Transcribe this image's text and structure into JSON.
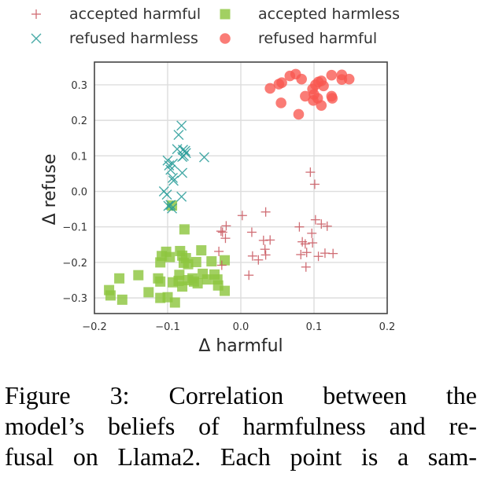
{
  "chart_data": {
    "type": "scatter",
    "title": "",
    "xlabel": "Δ harmful",
    "ylabel": "Δ refuse",
    "xlim": [
      -0.2,
      0.2
    ],
    "ylim": [
      -0.344,
      0.364
    ],
    "xticks": [
      -0.2,
      -0.1,
      0.0,
      0.1,
      0.2
    ],
    "xtick_labels": [
      "−0.2",
      "−0.1",
      "0.0",
      "0.1",
      "0.2"
    ],
    "yticks": [
      -0.3,
      -0.2,
      -0.1,
      0.0,
      0.1,
      0.2,
      0.3
    ],
    "ytick_labels": [
      "−0.3",
      "−0.2",
      "−0.1",
      "0.0",
      "0.1",
      "0.2",
      "0.3"
    ],
    "grid": true,
    "legend_position": "top (above plot, 2 columns)",
    "series": [
      {
        "name": "accepted harmful",
        "marker": "plus",
        "color": "#c8545c",
        "points": [
          [
            0.095,
            0.054
          ],
          [
            0.101,
            0.02
          ],
          [
            0.034,
            -0.058
          ],
          [
            0.002,
            -0.068
          ],
          [
            -0.027,
            -0.112
          ],
          [
            -0.025,
            -0.115
          ],
          [
            -0.02,
            -0.097
          ],
          [
            -0.021,
            -0.132
          ],
          [
            0.015,
            -0.115
          ],
          [
            0.031,
            -0.138
          ],
          [
            0.04,
            -0.137
          ],
          [
            0.033,
            -0.163
          ],
          [
            0.034,
            -0.179
          ],
          [
            0.016,
            -0.182
          ],
          [
            0.024,
            -0.193
          ],
          [
            0.011,
            -0.236
          ],
          [
            -0.03,
            -0.169
          ],
          [
            -0.026,
            -0.208
          ],
          [
            0.08,
            -0.1
          ],
          [
            0.102,
            -0.08
          ],
          [
            0.11,
            -0.092
          ],
          [
            0.118,
            -0.098
          ],
          [
            0.097,
            -0.118
          ],
          [
            0.084,
            -0.142
          ],
          [
            0.088,
            -0.148
          ],
          [
            0.082,
            -0.178
          ],
          [
            0.09,
            -0.172
          ],
          [
            0.106,
            -0.183
          ],
          [
            0.115,
            -0.174
          ],
          [
            0.126,
            -0.175
          ],
          [
            0.089,
            -0.213
          ],
          [
            0.098,
            -0.145
          ]
        ]
      },
      {
        "name": "accepted harmless",
        "marker": "square",
        "color": "#8dc63f",
        "points": [
          [
            -0.094,
            -0.04
          ],
          [
            -0.077,
            -0.107
          ],
          [
            -0.102,
            -0.17
          ],
          [
            -0.108,
            -0.182
          ],
          [
            -0.11,
            -0.2
          ],
          [
            -0.097,
            -0.185
          ],
          [
            -0.083,
            -0.168
          ],
          [
            -0.08,
            -0.181
          ],
          [
            -0.075,
            -0.188
          ],
          [
            -0.078,
            -0.201
          ],
          [
            -0.072,
            -0.205
          ],
          [
            -0.061,
            -0.199
          ],
          [
            -0.054,
            -0.166
          ],
          [
            -0.04,
            -0.197
          ],
          [
            -0.022,
            -0.194
          ],
          [
            -0.113,
            -0.245
          ],
          [
            -0.11,
            -0.254
          ],
          [
            -0.14,
            -0.236
          ],
          [
            -0.166,
            -0.245
          ],
          [
            -0.18,
            -0.278
          ],
          [
            -0.178,
            -0.293
          ],
          [
            -0.162,
            -0.305
          ],
          [
            -0.126,
            -0.284
          ],
          [
            -0.11,
            -0.3
          ],
          [
            -0.1,
            -0.298
          ],
          [
            -0.09,
            -0.313
          ],
          [
            -0.093,
            -0.256
          ],
          [
            -0.084,
            -0.235
          ],
          [
            -0.08,
            -0.268
          ],
          [
            -0.066,
            -0.245
          ],
          [
            -0.059,
            -0.259
          ],
          [
            -0.052,
            -0.232
          ],
          [
            -0.046,
            -0.248
          ],
          [
            -0.036,
            -0.234
          ],
          [
            -0.032,
            -0.248
          ],
          [
            -0.031,
            -0.265
          ],
          [
            -0.022,
            -0.28
          ],
          [
            -0.072,
            -0.25
          ],
          [
            -0.064,
            -0.254
          ],
          [
            -0.085,
            -0.252
          ]
        ]
      },
      {
        "name": "refused harmless",
        "marker": "x",
        "color": "#2a9d9a",
        "points": [
          [
            -0.081,
            0.185
          ],
          [
            -0.085,
            0.159
          ],
          [
            -0.087,
            0.119
          ],
          [
            -0.079,
            0.117
          ],
          [
            -0.076,
            0.114
          ],
          [
            -0.075,
            0.108
          ],
          [
            -0.078,
            0.1
          ],
          [
            -0.08,
            0.097
          ],
          [
            -0.05,
            0.096
          ],
          [
            -0.1,
            0.087
          ],
          [
            -0.098,
            0.073
          ],
          [
            -0.096,
            0.061
          ],
          [
            -0.093,
            0.078
          ],
          [
            -0.08,
            0.052
          ],
          [
            -0.093,
            0.038
          ],
          [
            -0.092,
            0.03
          ],
          [
            -0.105,
            0.0
          ],
          [
            -0.101,
            -0.009
          ],
          [
            -0.081,
            -0.015
          ],
          [
            -0.096,
            -0.038
          ],
          [
            -0.094,
            -0.048
          ],
          [
            -0.099,
            -0.041
          ]
        ]
      },
      {
        "name": "refused harmful",
        "marker": "circle",
        "color": "#f8574f",
        "points": [
          [
            0.04,
            0.29
          ],
          [
            0.052,
            0.302
          ],
          [
            0.056,
            0.306
          ],
          [
            0.067,
            0.325
          ],
          [
            0.075,
            0.33
          ],
          [
            0.083,
            0.316
          ],
          [
            0.055,
            0.249
          ],
          [
            0.079,
            0.217
          ],
          [
            0.088,
            0.268
          ],
          [
            0.098,
            0.288
          ],
          [
            0.1,
            0.273
          ],
          [
            0.102,
            0.3
          ],
          [
            0.106,
            0.308
          ],
          [
            0.11,
            0.311
          ],
          [
            0.113,
            0.297
          ],
          [
            0.105,
            0.262
          ],
          [
            0.099,
            0.256
          ],
          [
            0.11,
            0.242
          ],
          [
            0.124,
            0.268
          ],
          [
            0.125,
            0.262
          ],
          [
            0.124,
            0.327
          ],
          [
            0.138,
            0.328
          ],
          [
            0.138,
            0.315
          ],
          [
            0.148,
            0.316
          ]
        ]
      }
    ]
  },
  "caption": {
    "lines": [
      "Figure 3:  Correlation between the",
      "model’s beliefs of harmfulness and re-",
      "fusal on Llama2.  Each point is a sam-"
    ]
  }
}
